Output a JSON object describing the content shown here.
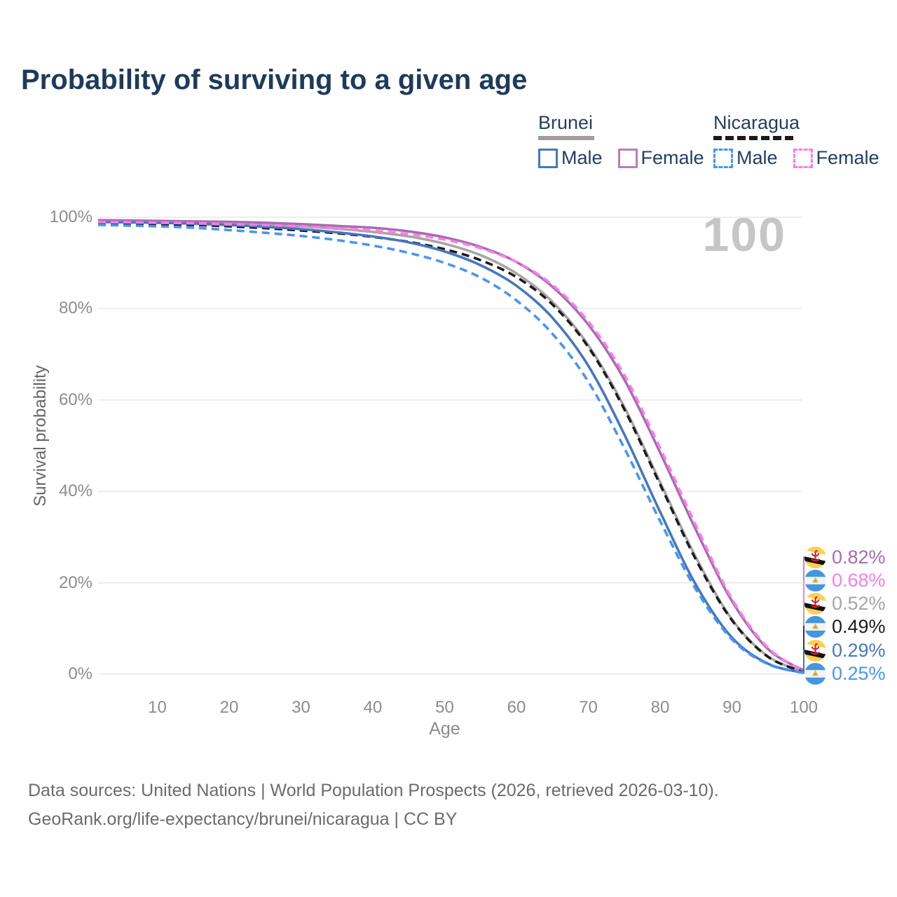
{
  "title": "Probability of surviving to a given age",
  "legend": {
    "groups": [
      {
        "country": "Brunei",
        "style": "solid",
        "items": [
          {
            "label": "Male"
          },
          {
            "label": "Female"
          }
        ]
      },
      {
        "country": "Nicaragua",
        "style": "dashed",
        "items": [
          {
            "label": "Male"
          },
          {
            "label": "Female"
          }
        ]
      }
    ]
  },
  "watermark": "100",
  "axes": {
    "y_title": "Survival probability",
    "x_title": "Age",
    "y_ticks": [
      "0%",
      "20%",
      "40%",
      "60%",
      "80%",
      "100%"
    ],
    "x_ticks": [
      10,
      20,
      30,
      40,
      50,
      60,
      70,
      80,
      90,
      100
    ]
  },
  "colors": {
    "title": "#1e3a5c",
    "gridline": "#e9e9e9",
    "watermark": "#c6c6c6",
    "brunei_female": "#a96bb2",
    "nicaragua_female": "#fb7de9",
    "brunei_all": "#a6a6a6",
    "nicaragua_all": "#1c1c1c",
    "brunei_male": "#4478c0",
    "nicaragua_male": "#4695f7"
  },
  "footer": {
    "line1": "Data sources: United Nations | World Population Prospects (2026, retrieved 2026-03-10).",
    "line2": "GeoRank.org/life-expectancy/brunei/nicaragua | CC BY"
  },
  "chart_data": {
    "type": "line",
    "title": "Probability of surviving to a given age",
    "xlabel": "Age",
    "ylabel": "Survival probability",
    "xlim": [
      0,
      100
    ],
    "ylim": [
      0,
      100
    ],
    "grid": "horizontal",
    "legend_position": "top-right",
    "x": [
      0,
      5,
      10,
      15,
      20,
      25,
      30,
      35,
      40,
      45,
      50,
      55,
      60,
      65,
      70,
      75,
      80,
      85,
      90,
      95,
      100
    ],
    "series": [
      {
        "name": "Brunei Female",
        "country": "brunei",
        "sex": "female",
        "dashed": false,
        "color": "#a96bb2",
        "end_label": "0.82%",
        "end_value": 0.82,
        "values": [
          99.4,
          99.3,
          99.2,
          99.1,
          99.0,
          98.8,
          98.5,
          98.1,
          97.7,
          96.9,
          95.6,
          93.5,
          90.2,
          84.8,
          76.5,
          64.5,
          48.5,
          31.5,
          16.0,
          5.5,
          0.82
        ]
      },
      {
        "name": "Nicaragua Female",
        "country": "nicaragua",
        "sex": "female",
        "dashed": true,
        "color": "#fb7de9",
        "end_label": "0.68%",
        "end_value": 0.68,
        "values": [
          99.0,
          98.9,
          98.8,
          98.7,
          98.5,
          98.3,
          98.0,
          97.6,
          97.1,
          96.3,
          95.1,
          93.2,
          90.2,
          85.2,
          77.2,
          65.5,
          49.5,
          32.5,
          16.5,
          5.8,
          0.68
        ]
      },
      {
        "name": "Brunei (both sexes)",
        "country": "brunei",
        "sex": "all",
        "dashed": false,
        "color": "#a6a6a6",
        "end_label": "0.52%",
        "end_value": 0.52,
        "values": [
          99.2,
          99.1,
          99.0,
          98.9,
          98.7,
          98.4,
          98.0,
          97.5,
          96.8,
          95.8,
          94.2,
          91.7,
          87.7,
          81.5,
          72.0,
          58.5,
          42.0,
          25.5,
          12.0,
          3.9,
          0.52
        ]
      },
      {
        "name": "Nicaragua (both sexes)",
        "country": "nicaragua",
        "sex": "all",
        "dashed": true,
        "color": "#1c1c1c",
        "end_label": "0.49%",
        "end_value": 0.49,
        "values": [
          98.7,
          98.6,
          98.5,
          98.3,
          98.0,
          97.6,
          97.1,
          96.5,
          95.7,
          94.6,
          93.0,
          90.6,
          86.9,
          80.9,
          71.6,
          58.0,
          41.5,
          25.0,
          11.8,
          3.8,
          0.49
        ]
      },
      {
        "name": "Brunei Male",
        "country": "brunei",
        "sex": "male",
        "dashed": false,
        "color": "#4478c0",
        "end_label": "0.29%",
        "end_value": 0.29,
        "values": [
          99.0,
          98.9,
          98.8,
          98.6,
          98.3,
          97.9,
          97.4,
          96.7,
          95.8,
          94.5,
          92.5,
          89.5,
          85.0,
          78.0,
          67.5,
          52.5,
          35.5,
          19.5,
          8.0,
          2.3,
          0.29
        ]
      },
      {
        "name": "Nicaragua Male",
        "country": "nicaragua",
        "sex": "male",
        "dashed": true,
        "color": "#4695f7",
        "end_label": "0.25%",
        "end_value": 0.25,
        "values": [
          98.4,
          98.2,
          98.0,
          97.7,
          97.2,
          96.6,
          95.9,
          95.0,
          93.8,
          92.2,
          90.0,
          86.8,
          81.8,
          74.5,
          64.0,
          49.5,
          33.5,
          18.5,
          7.6,
          2.2,
          0.25
        ]
      }
    ]
  }
}
